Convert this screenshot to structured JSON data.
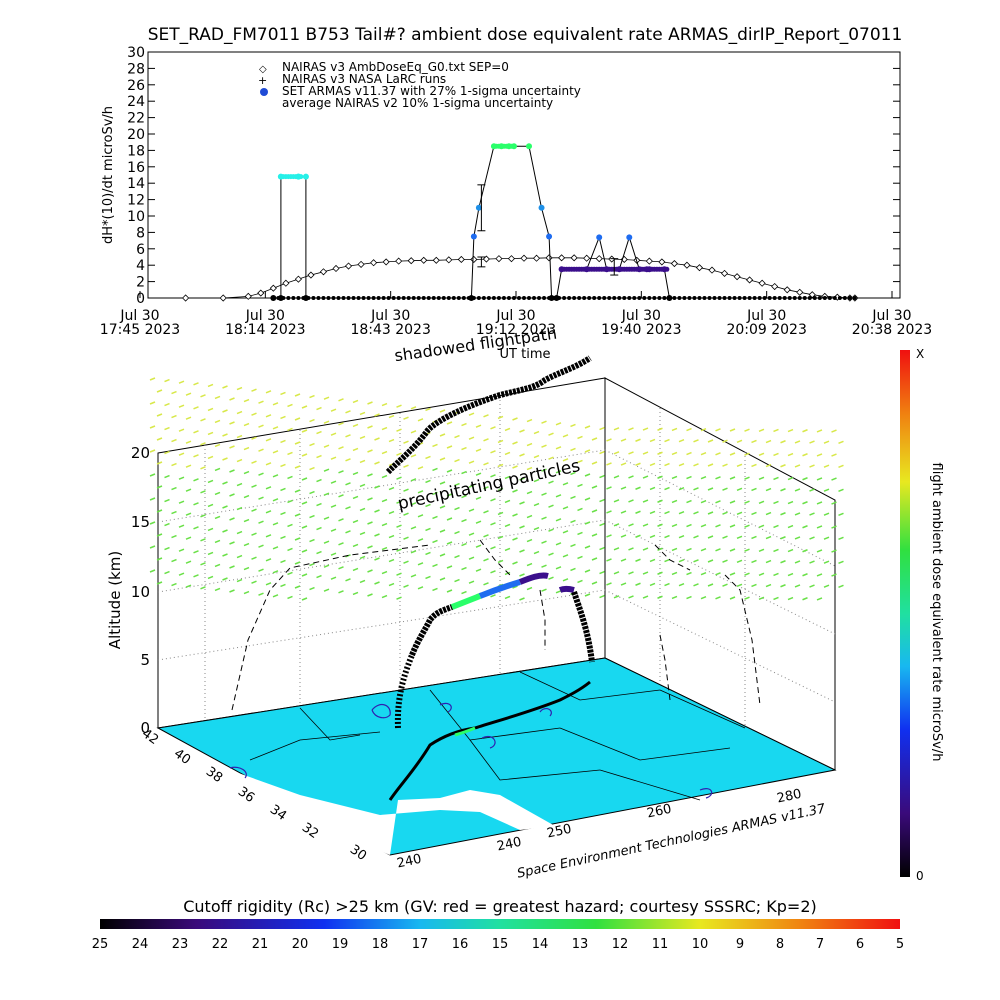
{
  "title": "SET_RAD_FM7011  B753 Tail#? ambient dose equivalent rate ARMAS_dirIP_Report_07011",
  "chart_data": [
    {
      "type": "line",
      "ylabel": "dH*(10)/dt microSv/h",
      "xlabel": "UT time",
      "ylim": [
        0,
        30
      ],
      "yticks": [
        "0",
        "2",
        "4",
        "6",
        "8",
        "10",
        "12",
        "14",
        "16",
        "18",
        "20",
        "22",
        "24",
        "26",
        "28",
        "30"
      ],
      "xticks": [
        {
          "l1": "Jul 30",
          "l2": "17:45 2023"
        },
        {
          "l1": "Jul 30",
          "l2": "18:14 2023"
        },
        {
          "l1": "Jul 30",
          "l2": "18:43 2023"
        },
        {
          "l1": "Jul 30",
          "l2": "19:12 2023"
        },
        {
          "l1": "Jul 30",
          "l2": "19:40 2023"
        },
        {
          "l1": "Jul 30",
          "l2": "20:09 2023"
        },
        {
          "l1": "Jul 30",
          "l2": "20:38 2023"
        }
      ],
      "legend_position": "top-left",
      "legend": [
        "NAIRAS v3 AmbDoseEq_G0.txt SEP=0",
        "NAIRAS v3 NASA LaRC runs",
        "SET ARMAS v11.37 with 27% 1-sigma uncertainty",
        "average NAIRAS v2 10% 1-sigma uncertainty"
      ],
      "series": [
        {
          "name": "NAIRAS v3 AmbDoseEq_G0.txt SEP=0",
          "x": [
            0.15,
            0.3,
            0.4,
            0.45,
            0.5,
            0.55,
            0.6,
            0.65,
            0.7,
            0.75,
            0.8,
            0.85,
            0.9,
            0.95,
            1.0,
            1.05,
            1.1,
            1.15,
            1.2,
            1.25,
            1.3,
            1.35,
            1.4,
            1.45,
            1.5,
            1.55,
            1.6,
            1.65,
            1.7,
            1.75,
            1.8,
            1.85,
            1.9,
            1.95,
            2.0,
            2.05,
            2.1,
            2.15,
            2.2,
            2.25,
            2.3,
            2.35,
            2.4,
            2.45,
            2.5,
            2.55,
            2.6,
            2.65,
            2.7,
            2.75,
            2.8,
            2.82
          ],
          "y": [
            0,
            0,
            0.2,
            0.6,
            1.2,
            1.8,
            2.3,
            2.8,
            3.2,
            3.6,
            3.9,
            4.1,
            4.3,
            4.4,
            4.5,
            4.55,
            4.6,
            4.6,
            4.65,
            4.7,
            4.7,
            4.75,
            4.8,
            4.8,
            4.85,
            4.85,
            4.9,
            4.9,
            4.9,
            4.85,
            4.8,
            4.75,
            4.7,
            4.6,
            4.5,
            4.4,
            4.2,
            4.0,
            3.7,
            3.4,
            3.0,
            2.6,
            2.2,
            1.8,
            1.4,
            1.0,
            0.7,
            0.4,
            0.2,
            0.1,
            0,
            0
          ]
        },
        {
          "name": "SET ARMAS v11.37 with 27% 1-sigma uncertainty",
          "x": [
            0.5,
            0.53,
            0.53,
            0.6,
            0.6,
            0.63,
            0.63,
            1.29,
            1.3,
            1.32,
            1.38,
            1.41,
            1.44,
            1.46,
            1.52,
            1.57,
            1.6,
            1.61,
            1.63,
            1.65,
            1.75,
            1.8,
            1.83,
            1.88,
            1.92,
            1.96,
            1.99,
            2.0,
            2.06,
            2.08
          ],
          "y": [
            0,
            0,
            14.8,
            14.8,
            14.8,
            14.8,
            0,
            0,
            7.5,
            11,
            18.5,
            18.5,
            18.5,
            18.5,
            18.5,
            11,
            7.5,
            0,
            0,
            3.5,
            3.5,
            7.4,
            3.5,
            3.5,
            7.4,
            3.5,
            3.5,
            3.5,
            3.5,
            0
          ]
        }
      ],
      "annotations": [
        "shadowed flightpath"
      ]
    },
    {
      "type": "3d-surface",
      "zlabel": "Altitude (km)",
      "zticks": [
        "0",
        "5",
        "10",
        "15",
        "20"
      ],
      "lat_ticks": [
        "42",
        "40",
        "38",
        "36",
        "34",
        "32",
        "30"
      ],
      "lon_ticks": [
        "240",
        "240",
        "250",
        "260",
        "280"
      ],
      "credit": "Space Environment Technologies ARMAS v11.37",
      "annotations": [
        "precipitating particles"
      ]
    }
  ],
  "colorbars": {
    "right": {
      "label": "flight ambient dose equivalent rate microSv/h",
      "top": "X",
      "bottom": "0"
    },
    "bottom": {
      "label": "Cutoff rigidity (Rc) >25 km (GV: red = greatest hazard; courtesy SSSRC; Kp=2)",
      "ticks": [
        "25",
        "24",
        "23",
        "22",
        "21",
        "20",
        "19",
        "18",
        "17",
        "16",
        "15",
        "14",
        "13",
        "12",
        "11",
        "10",
        "9",
        "8",
        "7",
        "6",
        "5"
      ]
    }
  },
  "colors": {
    "surface": "#18d8f0",
    "armas_points": "#3b0f8c",
    "armas_high": "#2aff6a",
    "armas_mid": "#1e6cf0",
    "armas_peak": "#26f0e8",
    "particles_yellow": "#d8e84a",
    "particles_green": "#6ae048"
  }
}
